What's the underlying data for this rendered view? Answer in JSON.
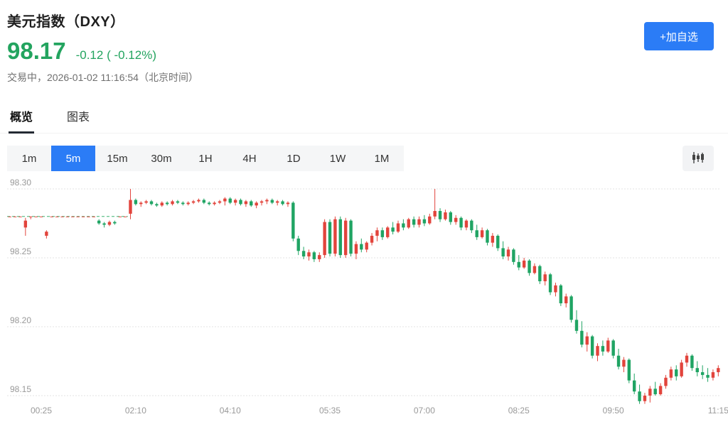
{
  "header": {
    "title": "美元指数（DXY）",
    "price": "98.17",
    "change": "-0.12 ( -0.12%)",
    "status": "交易中，2026-01-02 11:16:54（北京时间）",
    "add_watchlist_label": "+加自选"
  },
  "tabs": [
    {
      "label": "概览",
      "active": true
    },
    {
      "label": "图表",
      "active": false
    }
  ],
  "toolbar": {
    "intervals": [
      "1m",
      "5m",
      "15m",
      "30m",
      "1H",
      "4H",
      "1D",
      "1W",
      "1M"
    ],
    "selected": "5m",
    "chart_type_icon": "candlestick-icon"
  },
  "colors": {
    "up": "#e2443c",
    "down": "#1fa463",
    "accent_blue": "#2b7cf6",
    "price_green": "#23a45f",
    "grid": "#e3e3e3",
    "axis_text": "#999999",
    "prev_close_line": "#3cb371"
  },
  "chart_data": {
    "type": "candlestick",
    "symbol": "DXY",
    "interval": "5m",
    "y_ticks": [
      98.3,
      98.25,
      98.2,
      98.15
    ],
    "x_tick_labels": [
      "00:25",
      "02:10",
      "04:10",
      "05:35",
      "07:00",
      "08:25",
      "09:50",
      "11:15"
    ],
    "x_tick_indices": [
      6,
      24,
      42,
      61,
      79,
      97,
      115,
      135
    ],
    "prev_close": 98.28,
    "prev_close_line_span": [
      0,
      22
    ],
    "candles": [
      [
        98.28,
        98.28,
        98.28,
        98.28
      ],
      [
        98.28,
        98.28,
        98.28,
        98.28
      ],
      [
        98.28,
        98.28,
        98.28,
        98.28
      ],
      [
        98.272,
        98.279,
        98.266,
        98.277
      ],
      [
        98.28,
        98.28,
        98.278,
        98.28
      ],
      [
        98.28,
        98.28,
        98.28,
        98.28
      ],
      [
        98.28,
        98.28,
        98.28,
        98.28
      ],
      [
        98.266,
        98.27,
        98.264,
        98.269
      ],
      [
        98.28,
        98.28,
        98.28,
        98.28
      ],
      [
        98.28,
        98.28,
        98.28,
        98.28
      ],
      [
        98.28,
        98.28,
        98.28,
        98.28
      ],
      [
        98.28,
        98.28,
        98.28,
        98.28
      ],
      [
        98.28,
        98.28,
        98.28,
        98.28
      ],
      [
        98.28,
        98.28,
        98.28,
        98.28
      ],
      [
        98.28,
        98.28,
        98.28,
        98.28
      ],
      [
        98.28,
        98.28,
        98.28,
        98.28
      ],
      [
        98.28,
        98.28,
        98.28,
        98.28
      ],
      [
        98.277,
        98.278,
        98.274,
        98.275
      ],
      [
        98.275,
        98.276,
        98.272,
        98.274
      ],
      [
        98.274,
        98.277,
        98.273,
        98.276
      ],
      [
        98.276,
        98.277,
        98.274,
        98.275
      ],
      [
        98.28,
        98.28,
        98.28,
        98.28
      ],
      [
        98.28,
        98.28,
        98.28,
        98.28
      ],
      [
        98.282,
        98.3,
        98.278,
        98.292
      ],
      [
        98.292,
        98.293,
        98.288,
        98.289
      ],
      [
        98.289,
        98.291,
        98.287,
        98.29
      ],
      [
        98.29,
        98.292,
        98.289,
        98.291
      ],
      [
        98.291,
        98.292,
        98.288,
        98.289
      ],
      [
        98.289,
        98.29,
        98.287,
        98.288
      ],
      [
        98.288,
        98.291,
        98.287,
        98.29
      ],
      [
        98.29,
        98.291,
        98.288,
        98.289
      ],
      [
        98.289,
        98.292,
        98.288,
        98.291
      ],
      [
        98.291,
        98.292,
        98.289,
        98.29
      ],
      [
        98.29,
        98.291,
        98.288,
        98.289
      ],
      [
        98.289,
        98.291,
        98.288,
        98.29
      ],
      [
        98.29,
        98.292,
        98.289,
        98.291
      ],
      [
        98.291,
        98.293,
        98.29,
        98.292
      ],
      [
        98.292,
        98.293,
        98.289,
        98.29
      ],
      [
        98.29,
        98.291,
        98.288,
        98.289
      ],
      [
        98.289,
        98.291,
        98.288,
        98.29
      ],
      [
        98.29,
        98.292,
        98.289,
        98.291
      ],
      [
        98.291,
        98.294,
        98.288,
        98.293
      ],
      [
        98.293,
        98.294,
        98.289,
        98.29
      ],
      [
        98.29,
        98.293,
        98.288,
        98.292
      ],
      [
        98.292,
        98.293,
        98.288,
        98.289
      ],
      [
        98.289,
        98.292,
        98.287,
        98.291
      ],
      [
        98.291,
        98.292,
        98.287,
        98.288
      ],
      [
        98.288,
        98.291,
        98.286,
        98.29
      ],
      [
        98.29,
        98.292,
        98.288,
        98.291
      ],
      [
        98.291,
        98.293,
        98.289,
        98.292
      ],
      [
        98.292,
        98.293,
        98.289,
        98.29
      ],
      [
        98.29,
        98.292,
        98.288,
        98.291
      ],
      [
        98.291,
        98.292,
        98.288,
        98.289
      ],
      [
        98.289,
        98.291,
        98.287,
        98.29
      ],
      [
        98.29,
        98.291,
        98.262,
        98.264
      ],
      [
        98.264,
        98.266,
        98.252,
        98.255
      ],
      [
        98.255,
        98.258,
        98.249,
        98.251
      ],
      [
        98.251,
        98.256,
        98.248,
        98.254
      ],
      [
        98.254,
        98.255,
        98.247,
        98.249
      ],
      [
        98.249,
        98.254,
        98.247,
        98.252
      ],
      [
        98.252,
        98.278,
        98.25,
        98.276
      ],
      [
        98.276,
        98.278,
        98.251,
        98.253
      ],
      [
        98.253,
        98.28,
        98.251,
        98.278
      ],
      [
        98.278,
        98.28,
        98.25,
        98.252
      ],
      [
        98.252,
        98.279,
        98.25,
        98.277
      ],
      [
        98.277,
        98.278,
        98.251,
        98.253
      ],
      [
        98.253,
        98.262,
        98.249,
        98.26
      ],
      [
        98.26,
        98.264,
        98.254,
        98.256
      ],
      [
        98.256,
        98.262,
        98.254,
        98.261
      ],
      [
        98.261,
        98.268,
        98.259,
        98.266
      ],
      [
        98.266,
        98.272,
        98.262,
        98.27
      ],
      [
        98.27,
        98.272,
        98.263,
        98.265
      ],
      [
        98.265,
        98.273,
        98.264,
        98.272
      ],
      [
        98.272,
        98.276,
        98.267,
        98.269
      ],
      [
        98.269,
        98.277,
        98.268,
        98.275
      ],
      [
        98.275,
        98.278,
        98.27,
        98.272
      ],
      [
        98.272,
        98.279,
        98.271,
        98.278
      ],
      [
        98.278,
        98.28,
        98.272,
        98.274
      ],
      [
        98.274,
        98.28,
        98.272,
        98.278
      ],
      [
        98.278,
        98.281,
        98.273,
        98.275
      ],
      [
        98.275,
        98.282,
        98.274,
        98.28
      ],
      [
        98.28,
        98.3,
        98.278,
        98.284
      ],
      [
        98.284,
        98.286,
        98.276,
        98.278
      ],
      [
        98.278,
        98.285,
        98.277,
        98.283
      ],
      [
        98.283,
        98.284,
        98.274,
        98.276
      ],
      [
        98.276,
        98.281,
        98.274,
        98.279
      ],
      [
        98.279,
        98.28,
        98.27,
        98.272
      ],
      [
        98.272,
        98.278,
        98.27,
        98.277
      ],
      [
        98.277,
        98.278,
        98.268,
        98.27
      ],
      [
        98.27,
        98.274,
        98.263,
        98.265
      ],
      [
        98.265,
        98.272,
        98.264,
        98.27
      ],
      [
        98.27,
        98.271,
        98.259,
        98.261
      ],
      [
        98.261,
        98.268,
        98.258,
        98.266
      ],
      [
        98.266,
        98.267,
        98.255,
        98.257
      ],
      [
        98.257,
        98.262,
        98.249,
        98.251
      ],
      [
        98.251,
        98.258,
        98.248,
        98.256
      ],
      [
        98.256,
        98.257,
        98.245,
        98.247
      ],
      [
        98.247,
        98.252,
        98.241,
        98.243
      ],
      [
        98.243,
        98.25,
        98.242,
        98.248
      ],
      [
        98.248,
        98.249,
        98.237,
        98.239
      ],
      [
        98.239,
        98.246,
        98.238,
        98.244
      ],
      [
        98.244,
        98.245,
        98.231,
        98.233
      ],
      [
        98.233,
        98.24,
        98.23,
        98.238
      ],
      [
        98.238,
        98.239,
        98.223,
        98.225
      ],
      [
        98.225,
        98.232,
        98.222,
        98.23
      ],
      [
        98.23,
        98.231,
        98.215,
        98.217
      ],
      [
        98.217,
        98.224,
        98.214,
        98.222
      ],
      [
        98.222,
        98.223,
        98.203,
        98.205
      ],
      [
        98.205,
        98.212,
        98.195,
        98.197
      ],
      [
        98.197,
        98.204,
        98.185,
        98.187
      ],
      [
        98.187,
        98.196,
        98.182,
        98.193
      ],
      [
        98.193,
        98.194,
        98.177,
        98.179
      ],
      [
        98.179,
        98.188,
        98.175,
        98.186
      ],
      [
        98.186,
        98.19,
        98.179,
        98.182
      ],
      [
        98.182,
        98.192,
        98.181,
        98.19
      ],
      [
        98.19,
        98.191,
        98.177,
        98.179
      ],
      [
        98.179,
        98.184,
        98.169,
        98.171
      ],
      [
        98.171,
        98.178,
        98.167,
        98.176
      ],
      [
        98.176,
        98.177,
        98.159,
        98.161
      ],
      [
        98.161,
        98.166,
        98.151,
        98.153
      ],
      [
        98.153,
        98.158,
        98.144,
        98.146
      ],
      [
        98.146,
        98.152,
        98.144,
        98.15
      ],
      [
        98.15,
        98.157,
        98.145,
        98.155
      ],
      [
        98.155,
        98.16,
        98.15,
        98.151
      ],
      [
        98.151,
        98.159,
        98.15,
        98.157
      ],
      [
        98.157,
        98.165,
        98.155,
        98.163
      ],
      [
        98.163,
        98.171,
        98.161,
        98.169
      ],
      [
        98.169,
        98.172,
        98.161,
        98.164
      ],
      [
        98.164,
        98.176,
        98.163,
        98.174
      ],
      [
        98.174,
        98.181,
        98.171,
        98.179
      ],
      [
        98.179,
        98.18,
        98.168,
        98.17
      ],
      [
        98.17,
        98.175,
        98.164,
        98.167
      ],
      [
        98.167,
        98.172,
        98.162,
        98.165
      ],
      [
        98.165,
        98.17,
        98.16,
        98.163
      ],
      [
        98.163,
        98.169,
        98.161,
        98.167
      ],
      [
        98.167,
        98.172,
        98.164,
        98.17
      ]
    ]
  }
}
